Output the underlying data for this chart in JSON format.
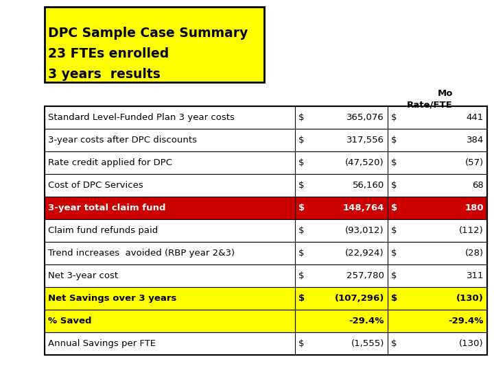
{
  "title_lines": [
    "DPC Sample Case Summary",
    "23 FTEs enrolled",
    "3 years  results"
  ],
  "title_bg": "#FFFF00",
  "title_border": "#000000",
  "header": "Mo\nRate/FTE",
  "rows": [
    {
      "label": "Standard Level-Funded Plan 3 year costs",
      "dollar1": "$",
      "val1": "365,076",
      "dollar2": "$",
      "val2": "441",
      "bg": "#FFFFFF",
      "fg": "#000000",
      "bold": false
    },
    {
      "label": "3-year costs after DPC discounts",
      "dollar1": "$",
      "val1": "317,556",
      "dollar2": "$",
      "val2": "384",
      "bg": "#FFFFFF",
      "fg": "#000000",
      "bold": false
    },
    {
      "label": "Rate credit applied for DPC",
      "dollar1": "$",
      "val1": "(47,520)",
      "dollar2": "$",
      "val2": "(57)",
      "bg": "#FFFFFF",
      "fg": "#000000",
      "bold": false
    },
    {
      "label": "Cost of DPC Services",
      "dollar1": "$",
      "val1": "56,160",
      "dollar2": "$",
      "val2": "68",
      "bg": "#FFFFFF",
      "fg": "#000000",
      "bold": false
    },
    {
      "label": "3-year total claim fund",
      "dollar1": "$",
      "val1": "148,764",
      "dollar2": "$",
      "val2": "180",
      "bg": "#CC0000",
      "fg": "#FFFFFF",
      "bold": true
    },
    {
      "label": "Claim fund refunds paid",
      "dollar1": "$",
      "val1": "(93,012)",
      "dollar2": "$",
      "val2": "(112)",
      "bg": "#FFFFFF",
      "fg": "#000000",
      "bold": false
    },
    {
      "label": "Trend increases  avoided (RBP year 2&3)",
      "dollar1": "$",
      "val1": "(22,924)",
      "dollar2": "$",
      "val2": "(28)",
      "bg": "#FFFFFF",
      "fg": "#000000",
      "bold": false
    },
    {
      "label": "Net 3-year cost",
      "dollar1": "$",
      "val1": "257,780",
      "dollar2": "$",
      "val2": "311",
      "bg": "#FFFFFF",
      "fg": "#000000",
      "bold": false
    },
    {
      "label": "Net Savings over 3 years",
      "dollar1": "$",
      "val1": "(107,296)",
      "dollar2": "$",
      "val2": "(130)",
      "bg": "#FFFF00",
      "fg": "#000000",
      "bold": true
    },
    {
      "label": "% Saved",
      "dollar1": "",
      "val1": "-29.4%",
      "dollar2": "",
      "val2": "-29.4%",
      "bg": "#FFFF00",
      "fg": "#000000",
      "bold": true
    },
    {
      "label": "Annual Savings per FTE",
      "dollar1": "$",
      "val1": "(1,555)",
      "dollar2": "$",
      "val2": "(130)",
      "bg": "#FFFFFF",
      "fg": "#000000",
      "bold": false
    }
  ],
  "bg": "#FFFFFF",
  "figw": 7.2,
  "figh": 5.4,
  "dpi": 100
}
